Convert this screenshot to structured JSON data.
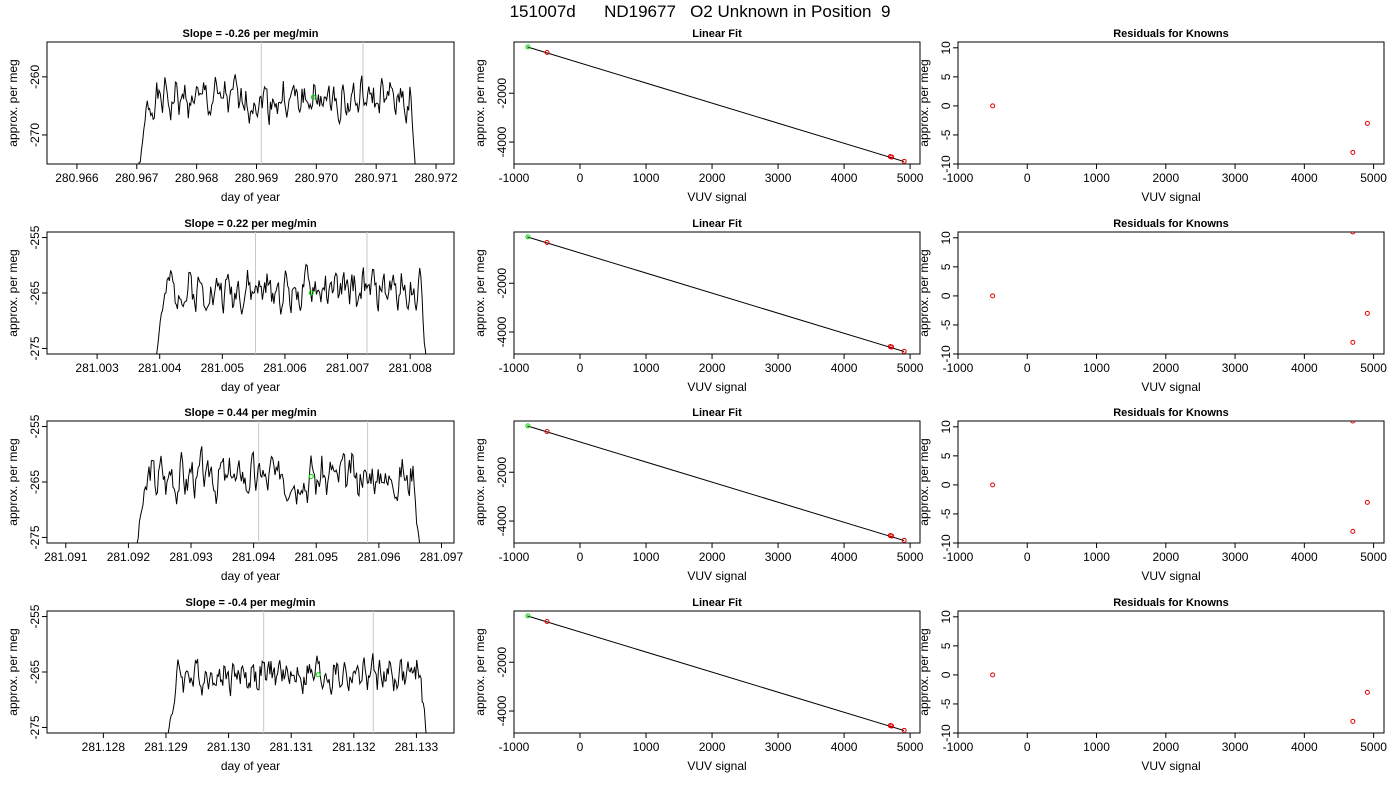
{
  "page_title": "151007d      ND19677   O2 Unknown in Position  9",
  "colors": {
    "trace": "#000000",
    "vline": "#c8c8c8",
    "known": "#e00000",
    "unknown": "#00e000"
  },
  "chart_data": [
    {
      "type": "line",
      "title": "Slope =  -0.26  per meg/min",
      "xlabel": "day of year",
      "ylabel": "approx. per meg",
      "xlim": [
        280.9655,
        280.9723
      ],
      "ylim": [
        -275,
        -254
      ],
      "xticks": [
        280.966,
        280.967,
        280.968,
        280.969,
        280.97,
        280.971,
        280.972
      ],
      "xtick_labels": [
        "280.966",
        "280.967",
        "280.968",
        "280.969",
        "280.970",
        "280.971",
        "280.972"
      ],
      "yticks": [
        -270,
        -260
      ],
      "ytick_labels": [
        "-270",
        "-260"
      ],
      "vlines": [
        280.96908,
        280.97078
      ],
      "trace_range": [
        280.96698,
        280.97168
      ],
      "trace_level": -264,
      "trace_amp": 2.5,
      "trace_seed": 1,
      "unknown_point": [
        280.96995,
        -263.5
      ]
    },
    {
      "type": "line",
      "title": "Slope =  0.22  per meg/min",
      "xlabel": "day of year",
      "ylabel": "approx. per meg",
      "xlim": [
        281.0022,
        281.0087
      ],
      "ylim": [
        -276,
        -254
      ],
      "xticks": [
        281.003,
        281.004,
        281.005,
        281.006,
        281.007,
        281.008
      ],
      "xtick_labels": [
        "281.003",
        "281.004",
        "281.005",
        "281.006",
        "281.007",
        "281.008"
      ],
      "yticks": [
        -275,
        -265,
        -255
      ],
      "ytick_labels": [
        "-275",
        "-265",
        "-255"
      ],
      "vlines": [
        281.00553,
        281.00731
      ],
      "trace_range": [
        281.00388,
        281.00828
      ],
      "trace_level": -264.5,
      "trace_amp": 2.5,
      "trace_seed": 2,
      "unknown_point": [
        281.00642,
        -265
      ]
    },
    {
      "type": "line",
      "title": "Slope =  0.44  per meg/min",
      "xlabel": "day of year",
      "ylabel": "approx. per meg",
      "xlim": [
        281.0907,
        281.0972
      ],
      "ylim": [
        -276,
        -254
      ],
      "xticks": [
        281.091,
        281.092,
        281.093,
        281.094,
        281.095,
        281.096,
        281.097
      ],
      "xtick_labels": [
        "281.091",
        "281.092",
        "281.093",
        "281.094",
        "281.095",
        "281.096",
        "281.097"
      ],
      "yticks": [
        -275,
        -265,
        -255
      ],
      "ytick_labels": [
        "-275",
        "-265",
        "-255"
      ],
      "vlines": [
        281.09408,
        281.09582
      ],
      "trace_range": [
        281.09208,
        281.09668
      ],
      "trace_level": -264,
      "trace_amp": 2.8,
      "trace_seed": 3,
      "unknown_point": [
        281.09492,
        -264
      ]
    },
    {
      "type": "line",
      "title": "Slope =  -0.4  per meg/min",
      "xlabel": "day of year",
      "ylabel": "approx. per meg",
      "xlim": [
        281.1271,
        281.1336
      ],
      "ylim": [
        -276,
        -254
      ],
      "xticks": [
        281.128,
        281.129,
        281.13,
        281.131,
        281.132,
        281.133
      ],
      "xtick_labels": [
        "281.128",
        "281.129",
        "281.130",
        "281.131",
        "281.132",
        "281.133"
      ],
      "yticks": [
        -275,
        -265,
        -255
      ],
      "ytick_labels": [
        "-275",
        "-265",
        "-255"
      ],
      "vlines": [
        281.13056,
        281.13231
      ],
      "trace_range": [
        281.12898,
        281.13318
      ],
      "trace_level": -265.5,
      "trace_amp": 2.3,
      "trace_seed": 4,
      "unknown_point": [
        281.13143,
        -265.5
      ]
    },
    {
      "type": "scatter",
      "title": "Linear Fit",
      "xlabel": "VUV signal",
      "ylabel": "approx. per meg",
      "xlim": [
        -1000,
        5150
      ],
      "ylim": [
        -4900,
        100
      ],
      "xticks": [
        -1000,
        0,
        1000,
        2000,
        3000,
        4000,
        5000
      ],
      "xtick_labels": [
        "-1000",
        "0",
        "1000",
        "2000",
        "3000",
        "4000",
        "5000"
      ],
      "yticks": [
        -4000,
        -2000
      ],
      "ytick_labels": [
        "-4000",
        "-2000"
      ],
      "fit_line": [
        [
          -800,
          -100
        ],
        [
          4910,
          -4800
        ]
      ],
      "known_points": [
        [
          -500,
          -330
        ],
        [
          4700,
          -4595
        ],
        [
          4720,
          -4615
        ],
        [
          4910,
          -4790
        ]
      ],
      "unknown_point": [
        -790,
        -100
      ]
    },
    {
      "type": "scatter",
      "title": "Linear Fit",
      "xlabel": "VUV signal",
      "ylabel": "approx. per meg",
      "xlim": [
        -1000,
        5150
      ],
      "ylim": [
        -4900,
        100
      ],
      "xticks": [
        -1000,
        0,
        1000,
        2000,
        3000,
        4000,
        5000
      ],
      "xtick_labels": [
        "-1000",
        "0",
        "1000",
        "2000",
        "3000",
        "4000",
        "5000"
      ],
      "yticks": [
        -4000,
        -2000
      ],
      "ytick_labels": [
        "-4000",
        "-2000"
      ],
      "fit_line": [
        [
          -800,
          -100
        ],
        [
          4910,
          -4800
        ]
      ],
      "known_points": [
        [
          -500,
          -330
        ],
        [
          4700,
          -4595
        ],
        [
          4720,
          -4615
        ],
        [
          4910,
          -4790
        ]
      ],
      "unknown_point": [
        -790,
        -100
      ]
    },
    {
      "type": "scatter",
      "title": "Linear Fit",
      "xlabel": "VUV signal",
      "ylabel": "approx. per meg",
      "xlim": [
        -1000,
        5150
      ],
      "ylim": [
        -4900,
        100
      ],
      "xticks": [
        -1000,
        0,
        1000,
        2000,
        3000,
        4000,
        5000
      ],
      "xtick_labels": [
        "-1000",
        "0",
        "1000",
        "2000",
        "3000",
        "4000",
        "5000"
      ],
      "yticks": [
        -4000,
        -2000
      ],
      "ytick_labels": [
        "-4000",
        "-2000"
      ],
      "fit_line": [
        [
          -800,
          -100
        ],
        [
          4910,
          -4800
        ]
      ],
      "known_points": [
        [
          -500,
          -330
        ],
        [
          4700,
          -4595
        ],
        [
          4720,
          -4615
        ],
        [
          4910,
          -4790
        ]
      ],
      "unknown_point": [
        -790,
        -100
      ]
    },
    {
      "type": "scatter",
      "title": "Linear Fit",
      "xlabel": "VUV signal",
      "ylabel": "approx. per meg",
      "xlim": [
        -1000,
        5150
      ],
      "ylim": [
        -4900,
        100
      ],
      "xticks": [
        -1000,
        0,
        1000,
        2000,
        3000,
        4000,
        5000
      ],
      "xtick_labels": [
        "-1000",
        "0",
        "1000",
        "2000",
        "3000",
        "4000",
        "5000"
      ],
      "yticks": [
        -4000,
        -2000
      ],
      "ytick_labels": [
        "-4000",
        "-2000"
      ],
      "fit_line": [
        [
          -800,
          -100
        ],
        [
          4910,
          -4800
        ]
      ],
      "known_points": [
        [
          -500,
          -330
        ],
        [
          4700,
          -4595
        ],
        [
          4720,
          -4615
        ],
        [
          4910,
          -4790
        ]
      ],
      "unknown_point": [
        -790,
        -100
      ]
    },
    {
      "type": "scatter",
      "title": "Residuals for Knowns",
      "xlabel": "VUV signal",
      "ylabel": "approx. per meg",
      "xlim": [
        -1000,
        5150
      ],
      "ylim": [
        -10,
        11
      ],
      "xticks": [
        -1000,
        0,
        1000,
        2000,
        3000,
        4000,
        5000
      ],
      "xtick_labels": [
        "-1000",
        "0",
        "1000",
        "2000",
        "3000",
        "4000",
        "5000"
      ],
      "yticks": [
        -10,
        -5,
        0,
        5,
        10
      ],
      "ytick_labels": [
        "-10",
        "-5",
        "0",
        "5",
        "10"
      ],
      "points": [
        [
          -500,
          0
        ],
        [
          4700,
          -8
        ],
        [
          4910,
          -3
        ]
      ]
    },
    {
      "type": "scatter",
      "title": "Residuals for Knowns",
      "xlabel": "VUV signal",
      "ylabel": "approx. per meg",
      "xlim": [
        -1000,
        5150
      ],
      "ylim": [
        -10,
        11
      ],
      "xticks": [
        -1000,
        0,
        1000,
        2000,
        3000,
        4000,
        5000
      ],
      "xtick_labels": [
        "-1000",
        "0",
        "1000",
        "2000",
        "3000",
        "4000",
        "5000"
      ],
      "yticks": [
        -10,
        -5,
        0,
        5,
        10
      ],
      "ytick_labels": [
        "-10",
        "-5",
        "0",
        "5",
        "10"
      ],
      "points": [
        [
          -500,
          0
        ],
        [
          4700,
          11
        ],
        [
          4700,
          -8
        ],
        [
          4910,
          -3
        ]
      ]
    },
    {
      "type": "scatter",
      "title": "Residuals for Knowns",
      "xlabel": "VUV signal",
      "ylabel": "approx. per meg",
      "xlim": [
        -1000,
        5150
      ],
      "ylim": [
        -10,
        11
      ],
      "xticks": [
        -1000,
        0,
        1000,
        2000,
        3000,
        4000,
        5000
      ],
      "xtick_labels": [
        "-1000",
        "0",
        "1000",
        "2000",
        "3000",
        "4000",
        "5000"
      ],
      "yticks": [
        -10,
        -5,
        0,
        5,
        10
      ],
      "ytick_labels": [
        "-10",
        "-5",
        "0",
        "5",
        "10"
      ],
      "points": [
        [
          -500,
          0
        ],
        [
          4700,
          11
        ],
        [
          4700,
          -8
        ],
        [
          4910,
          -3
        ]
      ]
    },
    {
      "type": "scatter",
      "title": "Residuals for Knowns",
      "xlabel": "VUV signal",
      "ylabel": "approx. per meg",
      "xlim": [
        -1000,
        5150
      ],
      "ylim": [
        -10,
        11
      ],
      "xticks": [
        -1000,
        0,
        1000,
        2000,
        3000,
        4000,
        5000
      ],
      "xtick_labels": [
        "-1000",
        "0",
        "1000",
        "2000",
        "3000",
        "4000",
        "5000"
      ],
      "yticks": [
        -10,
        -5,
        0,
        5,
        10
      ],
      "ytick_labels": [
        "-10",
        "-5",
        "0",
        "5",
        "10"
      ],
      "points": [
        [
          -500,
          0
        ],
        [
          4700,
          -8
        ],
        [
          4910,
          -3
        ]
      ]
    }
  ]
}
